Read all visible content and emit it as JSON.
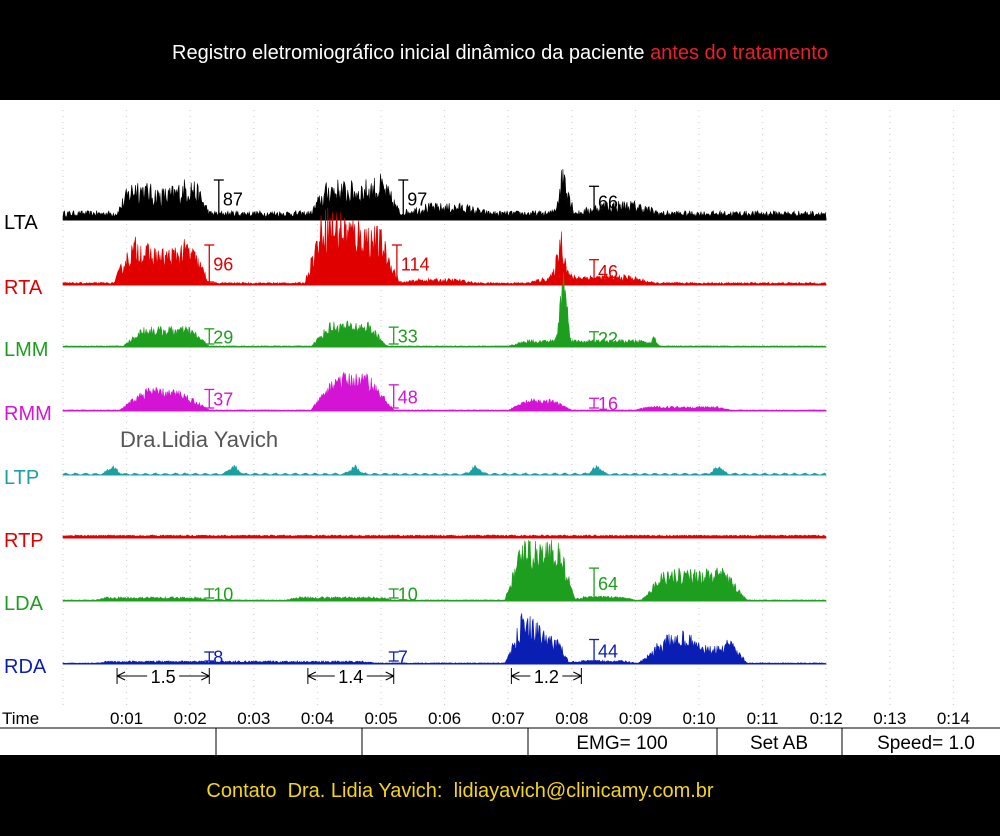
{
  "header": {
    "title_main": "Registro eletromiográfico inicial dinâmico da paciente ",
    "title_highlight": "antes do tratamento"
  },
  "footer": {
    "contact": "Contato  Dra. Lidia Yavich:  lidiayavich@clinicamy.com.br"
  },
  "watermark": "Dra.Lidia Yavich",
  "status_bar": {
    "emg": "EMG= 100",
    "set": "Set AB",
    "speed": "Speed= 1.0"
  },
  "chart_data": {
    "type": "area",
    "xlabel": "Time",
    "xlim": [
      0,
      14.5
    ],
    "x_unit": "seconds",
    "x_ticks": [
      "0:01",
      "0:02",
      "0:03",
      "0:04",
      "0:05",
      "0:06",
      "0:07",
      "0:08",
      "0:09",
      "0:10",
      "0:11",
      "0:12",
      "0:13",
      "0:14"
    ],
    "data_end_sec": 12.0,
    "clench_periods_sec": [
      [
        0.9,
        2.3
      ],
      [
        3.9,
        5.3
      ],
      [
        7.5,
        7.9
      ]
    ],
    "durations": [
      {
        "label": "1.5",
        "start": 0.85,
        "end": 2.3
      },
      {
        "label": "1.4",
        "start": 3.85,
        "end": 5.2
      },
      {
        "label": "1.2",
        "start": 7.05,
        "end": 8.15
      }
    ],
    "series": [
      {
        "name": "LTA",
        "color": "#000000",
        "marker_values": [
          "87",
          "97",
          "66"
        ],
        "marker_x": [
          2.45,
          5.35,
          8.35
        ]
      },
      {
        "name": "RTA",
        "color": "#e00000",
        "marker_values": [
          "96",
          "114",
          "46"
        ],
        "marker_x": [
          2.3,
          5.25,
          8.35
        ]
      },
      {
        "name": "LMM",
        "color": "#1e9e1e",
        "marker_values": [
          "29",
          "33",
          "22"
        ],
        "marker_x": [
          2.3,
          5.2,
          8.35
        ]
      },
      {
        "name": "RMM",
        "color": "#d414d4",
        "marker_values": [
          "37",
          "48",
          "16"
        ],
        "marker_x": [
          2.3,
          5.2,
          8.35
        ]
      },
      {
        "name": "LTP",
        "color": "#1aa0a0",
        "marker_values": [],
        "marker_x": []
      },
      {
        "name": "RTP",
        "color": "#e00000",
        "marker_values": [],
        "marker_x": []
      },
      {
        "name": "LDA",
        "color": "#1e9e1e",
        "marker_values": [
          "10",
          "10",
          "64"
        ],
        "marker_x": [
          2.3,
          5.2,
          8.35
        ]
      },
      {
        "name": "RDA",
        "color": "#0a1eb4",
        "marker_values": [
          "8",
          "7",
          "44"
        ],
        "marker_x": [
          2.3,
          5.2,
          8.35
        ]
      }
    ]
  }
}
